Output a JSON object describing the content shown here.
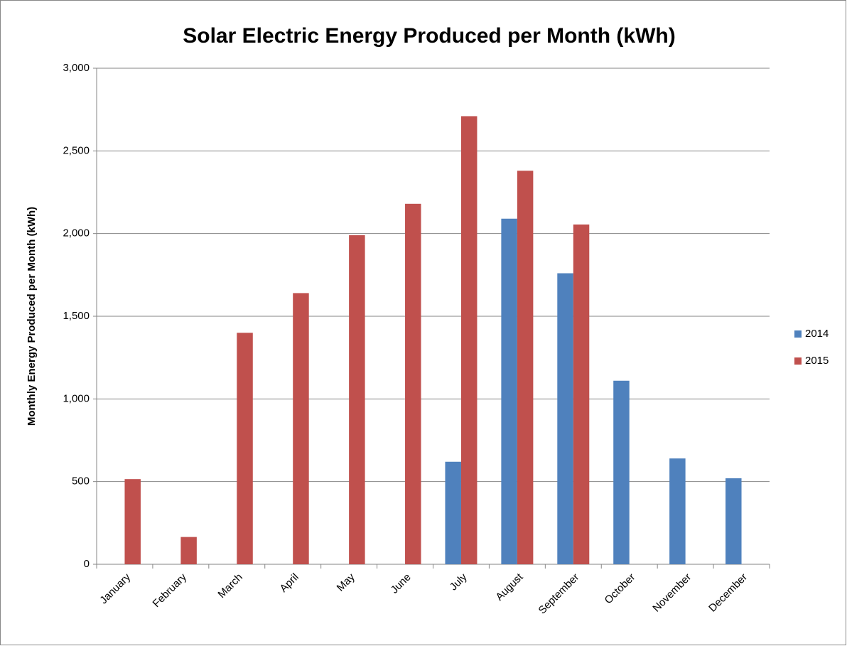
{
  "chart_data": {
    "type": "bar",
    "title": "Solar Electric Energy Produced per Month (kWh)",
    "y_label": "Monthly Energy Produced per Month (kWh)",
    "categories": [
      "January",
      "February",
      "March",
      "April",
      "May",
      "June",
      "July",
      "August",
      "September",
      "October",
      "November",
      "December"
    ],
    "series": [
      {
        "name": "2014",
        "color": "#4f81bd",
        "values": [
          null,
          null,
          null,
          null,
          null,
          null,
          620,
          2090,
          1760,
          1110,
          640,
          520
        ]
      },
      {
        "name": "2015",
        "color": "#c0504d",
        "values": [
          515,
          165,
          1400,
          1640,
          1990,
          2180,
          2710,
          2380,
          2055,
          null,
          null,
          null
        ]
      }
    ],
    "ylim": [
      0,
      3000
    ],
    "yticks": [
      0,
      500,
      {
        "value": 1000,
        "label": "1,000"
      },
      {
        "value": 1500,
        "label": "1,500"
      },
      {
        "value": 2000,
        "label": "2,000"
      },
      {
        "value": 2500,
        "label": "2,500"
      },
      {
        "value": 3000,
        "label": "3,000"
      }
    ],
    "grid": true,
    "legend": "right"
  }
}
